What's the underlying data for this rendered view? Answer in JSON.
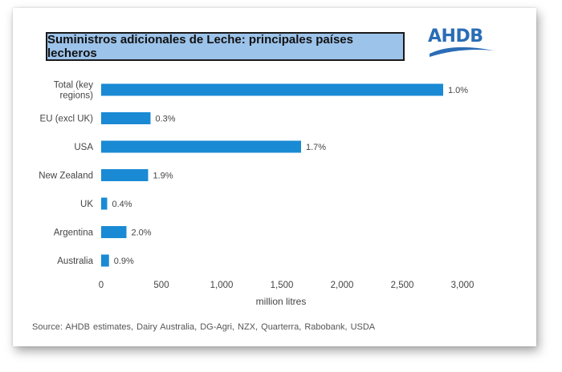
{
  "header": {
    "title": "Suministros adicionales de Leche: principales países lecheros"
  },
  "logo": {
    "text": "AHDB",
    "color": "#2a6db5"
  },
  "source": "Source: AHDB estimates, Dairy Australia, DG-Agri, NZX, Quarterra, Rabobank, USDA",
  "chart_data": {
    "type": "bar",
    "orientation": "horizontal",
    "categories": [
      [
        "Total (key",
        "regions)"
      ],
      [
        "EU (excl UK)"
      ],
      [
        "USA"
      ],
      [
        "New Zealand"
      ],
      [
        "UK"
      ],
      [
        "Argentina"
      ],
      [
        "Australia"
      ]
    ],
    "values": [
      2840,
      410,
      1660,
      390,
      50,
      210,
      65
    ],
    "data_labels": [
      "1.0%",
      "0.3%",
      "1.7%",
      "1.9%",
      "0.4%",
      "2.0%",
      "0.9%"
    ],
    "xlabel": "million litres",
    "xlim": [
      0,
      3000
    ],
    "xticks": [
      "0",
      "500",
      "1,000",
      "1,500",
      "2,000",
      "2,500",
      "3,000"
    ],
    "bar_color": "#1a8ad4",
    "grid": false,
    "legend": "none"
  }
}
